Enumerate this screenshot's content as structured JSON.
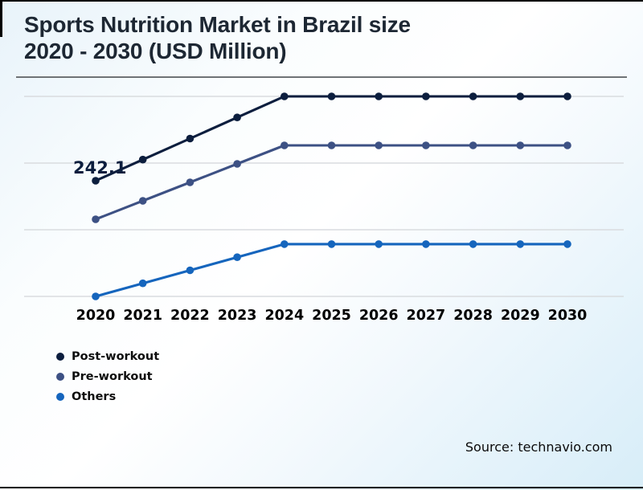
{
  "title": {
    "line1": "Sports Nutrition Market in Brazil size",
    "line2": "2020 - 2030 (USD Million)"
  },
  "footer": {
    "source": "Source: technavio.com"
  },
  "chart_data": {
    "type": "line",
    "title": "Sports Nutrition Market in Brazil size 2020 - 2030 (USD Million)",
    "categories": [
      "2020",
      "2021",
      "2022",
      "2023",
      "2024",
      "2025",
      "2026",
      "2027",
      "2028",
      "2029",
      "2030"
    ],
    "series": [
      {
        "name": "Post-workout",
        "color": "#0c1e3e",
        "values": [
          242.1,
          268.0,
          293.9,
          319.8,
          345.7,
          345.7,
          345.7,
          345.7,
          345.7,
          345.7,
          345.7
        ]
      },
      {
        "name": "Pre-workout",
        "color": "#3d5184",
        "values": [
          194.7,
          217.4,
          240.1,
          262.8,
          285.5,
          285.5,
          285.5,
          285.5,
          285.5,
          285.5,
          285.5
        ]
      },
      {
        "name": "Others",
        "color": "#1565bd",
        "values": [
          100.0,
          116.1,
          132.1,
          148.2,
          164.2,
          164.2,
          164.2,
          164.2,
          164.2,
          164.2,
          164.2
        ]
      }
    ],
    "annotations": [
      {
        "text": "242.1",
        "series": "Post-workout",
        "category": "2020"
      }
    ],
    "xlabel": "",
    "ylabel": "",
    "ylim": [
      100,
      345.7
    ],
    "grid": "horizontal",
    "legend_position": "bottom-left"
  }
}
